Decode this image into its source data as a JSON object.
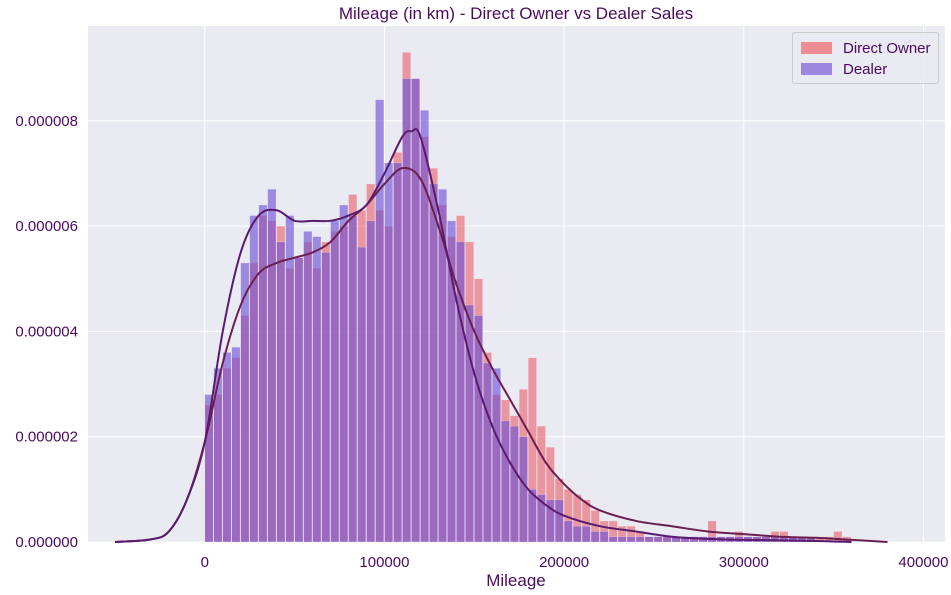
{
  "chart_data": {
    "type": "bar",
    "title": "Mileage (in km) - Direct Owner vs Dealer Sales",
    "xlabel": "Mileage",
    "ylabel": "",
    "xlim": [
      -65000,
      412000
    ],
    "ylim": [
      0,
      9.8e-06
    ],
    "x_ticks": [
      0,
      100000,
      200000,
      300000,
      400000
    ],
    "x_tick_labels": [
      "0",
      "100000",
      "200000",
      "300000",
      "400000"
    ],
    "y_ticks": [
      0,
      2e-06,
      4e-06,
      6e-06,
      8e-06
    ],
    "y_tick_labels": [
      "0.000000",
      "0.000002",
      "0.000004",
      "0.000006",
      "0.000008"
    ],
    "grid": true,
    "legend_position": "top-right",
    "colors": {
      "background": "#eaeaf2",
      "grid": "#ffffff",
      "text": "#4b0a60",
      "direct_owner": "#e8636e",
      "dealer": "#6a4fd4",
      "kde_direct_owner": "#6b1f4f",
      "kde_dealer": "#5a1a6e"
    },
    "series": [
      {
        "name": "Direct Owner",
        "kind": "histogram",
        "bins": [
          [
            0,
            2.6e-06
          ],
          [
            5000,
            2.8e-06
          ],
          [
            10000,
            3.3e-06
          ],
          [
            15000,
            3.5e-06
          ],
          [
            20000,
            4.3e-06
          ],
          [
            25000,
            5.3e-06
          ],
          [
            30000,
            6.2e-06
          ],
          [
            35000,
            6.1e-06
          ],
          [
            40000,
            6e-06
          ],
          [
            45000,
            5.2e-06
          ],
          [
            50000,
            5.4e-06
          ],
          [
            55000,
            5.7e-06
          ],
          [
            60000,
            5.2e-06
          ],
          [
            65000,
            5.7e-06
          ],
          [
            70000,
            5.9e-06
          ],
          [
            75000,
            6e-06
          ],
          [
            80000,
            6.6e-06
          ],
          [
            85000,
            6.3e-06
          ],
          [
            90000,
            6.8e-06
          ],
          [
            95000,
            6.3e-06
          ],
          [
            100000,
            6e-06
          ],
          [
            105000,
            7.4e-06
          ],
          [
            110000,
            9.3e-06
          ],
          [
            115000,
            8.8e-06
          ],
          [
            120000,
            7.7e-06
          ],
          [
            125000,
            7.1e-06
          ],
          [
            130000,
            6.4e-06
          ],
          [
            135000,
            5.8e-06
          ],
          [
            140000,
            6.2e-06
          ],
          [
            145000,
            5.7e-06
          ],
          [
            150000,
            5e-06
          ],
          [
            155000,
            3.6e-06
          ],
          [
            160000,
            2.8e-06
          ],
          [
            165000,
            2.7e-06
          ],
          [
            170000,
            2.4e-06
          ],
          [
            175000,
            2.9e-06
          ],
          [
            180000,
            3.5e-06
          ],
          [
            185000,
            2.2e-06
          ],
          [
            190000,
            1.8e-06
          ],
          [
            195000,
            1.2e-06
          ],
          [
            200000,
            1e-06
          ],
          [
            205000,
            9e-07
          ],
          [
            210000,
            8e-07
          ],
          [
            215000,
            6e-07
          ],
          [
            220000,
            4e-07
          ],
          [
            225000,
            4e-07
          ],
          [
            230000,
            3e-07
          ],
          [
            235000,
            3e-07
          ],
          [
            240000,
            2e-07
          ],
          [
            245000,
            1e-07
          ],
          [
            250000,
            1e-07
          ],
          [
            255000,
            1e-07
          ],
          [
            260000,
            1e-07
          ],
          [
            265000,
            1e-07
          ],
          [
            270000,
            1e-07
          ],
          [
            275000,
            1e-07
          ],
          [
            280000,
            4e-07
          ],
          [
            285000,
            1e-07
          ],
          [
            290000,
            1e-07
          ],
          [
            295000,
            2e-07
          ],
          [
            300000,
            1e-07
          ],
          [
            305000,
            1e-07
          ],
          [
            310000,
            1e-07
          ],
          [
            315000,
            2e-07
          ],
          [
            320000,
            2e-07
          ],
          [
            325000,
            1e-07
          ],
          [
            330000,
            1e-07
          ],
          [
            335000,
            1e-07
          ],
          [
            340000,
            1e-07
          ],
          [
            345000,
            1e-07
          ],
          [
            350000,
            2e-07
          ],
          [
            355000,
            1e-07
          ]
        ],
        "bin_width": 5000
      },
      {
        "name": "Dealer",
        "kind": "histogram",
        "bins": [
          [
            0,
            2.8e-06
          ],
          [
            5000,
            3.3e-06
          ],
          [
            10000,
            3.6e-06
          ],
          [
            15000,
            3.7e-06
          ],
          [
            20000,
            5.3e-06
          ],
          [
            25000,
            6.2e-06
          ],
          [
            30000,
            6.4e-06
          ],
          [
            35000,
            6.7e-06
          ],
          [
            40000,
            5.7e-06
          ],
          [
            45000,
            6.2e-06
          ],
          [
            50000,
            5.4e-06
          ],
          [
            55000,
            5.9e-06
          ],
          [
            60000,
            5.8e-06
          ],
          [
            65000,
            5.5e-06
          ],
          [
            70000,
            6.1e-06
          ],
          [
            75000,
            6.4e-06
          ],
          [
            80000,
            6.2e-06
          ],
          [
            85000,
            5.6e-06
          ],
          [
            90000,
            6.1e-06
          ],
          [
            95000,
            8.4e-06
          ],
          [
            100000,
            7.2e-06
          ],
          [
            105000,
            7.2e-06
          ],
          [
            110000,
            8.8e-06
          ],
          [
            115000,
            8.8e-06
          ],
          [
            120000,
            8.2e-06
          ],
          [
            125000,
            6.8e-06
          ],
          [
            130000,
            6.7e-06
          ],
          [
            135000,
            6.1e-06
          ],
          [
            140000,
            5.7e-06
          ],
          [
            145000,
            4.5e-06
          ],
          [
            150000,
            4.3e-06
          ],
          [
            155000,
            3.4e-06
          ],
          [
            160000,
            3.3e-06
          ],
          [
            165000,
            2.3e-06
          ],
          [
            170000,
            2.2e-06
          ],
          [
            175000,
            2e-06
          ],
          [
            180000,
            1e-06
          ],
          [
            185000,
            9e-07
          ],
          [
            190000,
            8e-07
          ],
          [
            195000,
            8e-07
          ],
          [
            200000,
            4e-07
          ],
          [
            205000,
            3e-07
          ],
          [
            210000,
            3e-07
          ],
          [
            215000,
            2e-07
          ],
          [
            220000,
            2e-07
          ],
          [
            225000,
            1e-07
          ],
          [
            230000,
            1e-07
          ],
          [
            235000,
            1e-07
          ],
          [
            240000,
            1e-07
          ],
          [
            245000,
            1e-07
          ],
          [
            250000,
            1e-07
          ],
          [
            255000,
            1e-07
          ],
          [
            260000,
            1e-07
          ],
          [
            265000,
            1e-07
          ],
          [
            270000,
            1e-07
          ],
          [
            275000,
            1e-07
          ],
          [
            280000,
            1e-07
          ],
          [
            285000,
            1e-07
          ],
          [
            290000,
            1e-07
          ],
          [
            295000,
            1e-07
          ],
          [
            300000,
            1e-07
          ],
          [
            305000,
            1e-07
          ],
          [
            310000,
            1e-07
          ],
          [
            315000,
            1e-07
          ],
          [
            320000,
            1e-07
          ],
          [
            325000,
            1e-07
          ],
          [
            330000,
            1e-07
          ],
          [
            335000,
            1e-07
          ]
        ],
        "bin_width": 5000
      }
    ],
    "kde": [
      {
        "series": "Direct Owner",
        "points": [
          [
            -50000,
            0.0
          ],
          [
            -30000,
            5e-08
          ],
          [
            -20000,
            2e-07
          ],
          [
            -10000,
            8e-07
          ],
          [
            0,
            1.9e-06
          ],
          [
            10000,
            3.4e-06
          ],
          [
            20000,
            4.5e-06
          ],
          [
            30000,
            5.1e-06
          ],
          [
            40000,
            5.3e-06
          ],
          [
            50000,
            5.4e-06
          ],
          [
            60000,
            5.5e-06
          ],
          [
            70000,
            5.7e-06
          ],
          [
            80000,
            6.1e-06
          ],
          [
            90000,
            6.4e-06
          ],
          [
            100000,
            6.8e-06
          ],
          [
            110000,
            7.1e-06
          ],
          [
            120000,
            6.9e-06
          ],
          [
            130000,
            6e-06
          ],
          [
            140000,
            4.9e-06
          ],
          [
            150000,
            4e-06
          ],
          [
            160000,
            3.3e-06
          ],
          [
            170000,
            2.7e-06
          ],
          [
            180000,
            2.1e-06
          ],
          [
            190000,
            1.5e-06
          ],
          [
            200000,
            1.1e-06
          ],
          [
            210000,
            8e-07
          ],
          [
            220000,
            6e-07
          ],
          [
            240000,
            4e-07
          ],
          [
            260000,
            3e-07
          ],
          [
            280000,
            2e-07
          ],
          [
            300000,
            1.5e-07
          ],
          [
            320000,
            1e-07
          ],
          [
            340000,
            8e-08
          ],
          [
            360000,
            4e-08
          ],
          [
            380000,
            0.0
          ]
        ]
      },
      {
        "series": "Dealer",
        "points": [
          [
            -50000,
            0.0
          ],
          [
            -30000,
            5e-08
          ],
          [
            -20000,
            2e-07
          ],
          [
            -10000,
            8e-07
          ],
          [
            0,
            1.9e-06
          ],
          [
            10000,
            4e-06
          ],
          [
            20000,
            5.5e-06
          ],
          [
            30000,
            6.2e-06
          ],
          [
            40000,
            6.3e-06
          ],
          [
            50000,
            6.1e-06
          ],
          [
            60000,
            6.1e-06
          ],
          [
            70000,
            6.1e-06
          ],
          [
            80000,
            6.2e-06
          ],
          [
            90000,
            6.4e-06
          ],
          [
            100000,
            7e-06
          ],
          [
            110000,
            7.7e-06
          ],
          [
            115000,
            7.8e-06
          ],
          [
            120000,
            7.7e-06
          ],
          [
            130000,
            6.3e-06
          ],
          [
            140000,
            4.6e-06
          ],
          [
            150000,
            3.2e-06
          ],
          [
            160000,
            2.2e-06
          ],
          [
            170000,
            1.5e-06
          ],
          [
            180000,
            1e-06
          ],
          [
            190000,
            7e-07
          ],
          [
            200000,
            5e-07
          ],
          [
            220000,
            3e-07
          ],
          [
            240000,
            2e-07
          ],
          [
            260000,
            1e-07
          ],
          [
            280000,
            6e-08
          ],
          [
            300000,
            4e-08
          ],
          [
            340000,
            2e-08
          ],
          [
            360000,
            0.0
          ]
        ]
      }
    ]
  },
  "legend": {
    "items": [
      {
        "label": "Direct Owner",
        "color": "#e8636e"
      },
      {
        "label": "Dealer",
        "color": "#6a4fd4"
      }
    ]
  }
}
